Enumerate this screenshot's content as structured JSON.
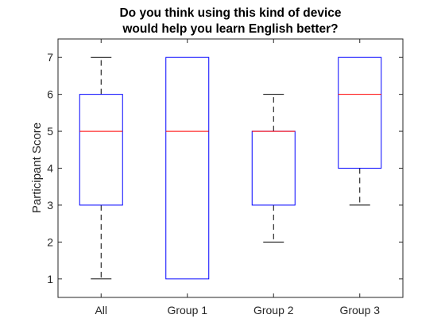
{
  "chart_data": {
    "type": "box",
    "title": "Do you think using this kind of device would help you learn English better?",
    "title_lines": [
      "Do you think using this kind of device",
      "would help you learn English better?"
    ],
    "xlabel": "",
    "ylabel": "Participant Score",
    "categories": [
      "All",
      "Group 1",
      "Group 2",
      "Group 3"
    ],
    "ylim": [
      0.5,
      7.5
    ],
    "yticks": [
      1,
      2,
      3,
      4,
      5,
      6,
      7
    ],
    "boxes": [
      {
        "category": "All",
        "min": 1,
        "q1": 3,
        "median": 5,
        "q3": 6,
        "max": 7
      },
      {
        "category": "Group 1",
        "min": 1,
        "q1": 1,
        "median": 5,
        "q3": 7,
        "max": 7
      },
      {
        "category": "Group 2",
        "min": 2,
        "q1": 3,
        "median": 5,
        "q3": 5,
        "max": 6
      },
      {
        "category": "Group 3",
        "min": 3,
        "q1": 4,
        "median": 6,
        "q3": 7,
        "max": 7
      }
    ],
    "grid": false,
    "legend": "none",
    "colors": {
      "box": "#0000ff",
      "median": "#ff0000",
      "whisker": "#000000",
      "axis": "#262626"
    }
  }
}
